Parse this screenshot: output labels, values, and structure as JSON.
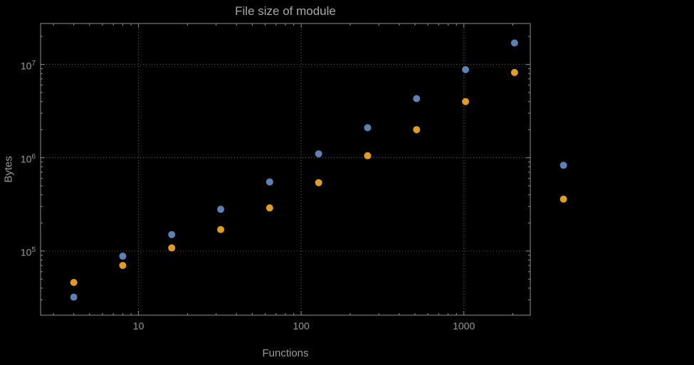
{
  "style": {
    "background": "#000000",
    "frame": "#8f8f8f",
    "grid": "#5e5e5e",
    "text": "#9a9a9a",
    "series_blue": "#5E81B5",
    "series_orange": "#E19C24"
  },
  "chart_data": {
    "type": "scatter",
    "title": "File size of module",
    "xlabel": "Functions",
    "ylabel": "Bytes",
    "x_scale": "log",
    "y_scale": "log",
    "grid": true,
    "legend": "none",
    "x_ticks": [
      10,
      100,
      1000
    ],
    "y_ticks": [
      100000,
      1000000,
      10000000
    ],
    "x_range": [
      2.5,
      2560
    ],
    "y_range": [
      20500,
      27500000
    ],
    "series": [
      {
        "name": "series-1-blue",
        "color": "#5E81B5",
        "points": [
          [
            4,
            32000
          ],
          [
            8,
            88000
          ],
          [
            16,
            150000
          ],
          [
            32,
            280000
          ],
          [
            64,
            550000
          ],
          [
            128,
            1100000
          ],
          [
            256,
            2100000
          ],
          [
            512,
            4300000
          ],
          [
            1024,
            8800000
          ],
          [
            2048,
            17000000
          ],
          [
            4096,
            830000
          ]
        ]
      },
      {
        "name": "series-2-orange",
        "color": "#E19C24",
        "points": [
          [
            4,
            46000
          ],
          [
            8,
            70000
          ],
          [
            16,
            108000
          ],
          [
            32,
            170000
          ],
          [
            64,
            290000
          ],
          [
            128,
            540000
          ],
          [
            256,
            1050000
          ],
          [
            512,
            2000000
          ],
          [
            1024,
            4000000
          ],
          [
            2048,
            8200000
          ],
          [
            4096,
            360000
          ]
        ]
      }
    ]
  }
}
